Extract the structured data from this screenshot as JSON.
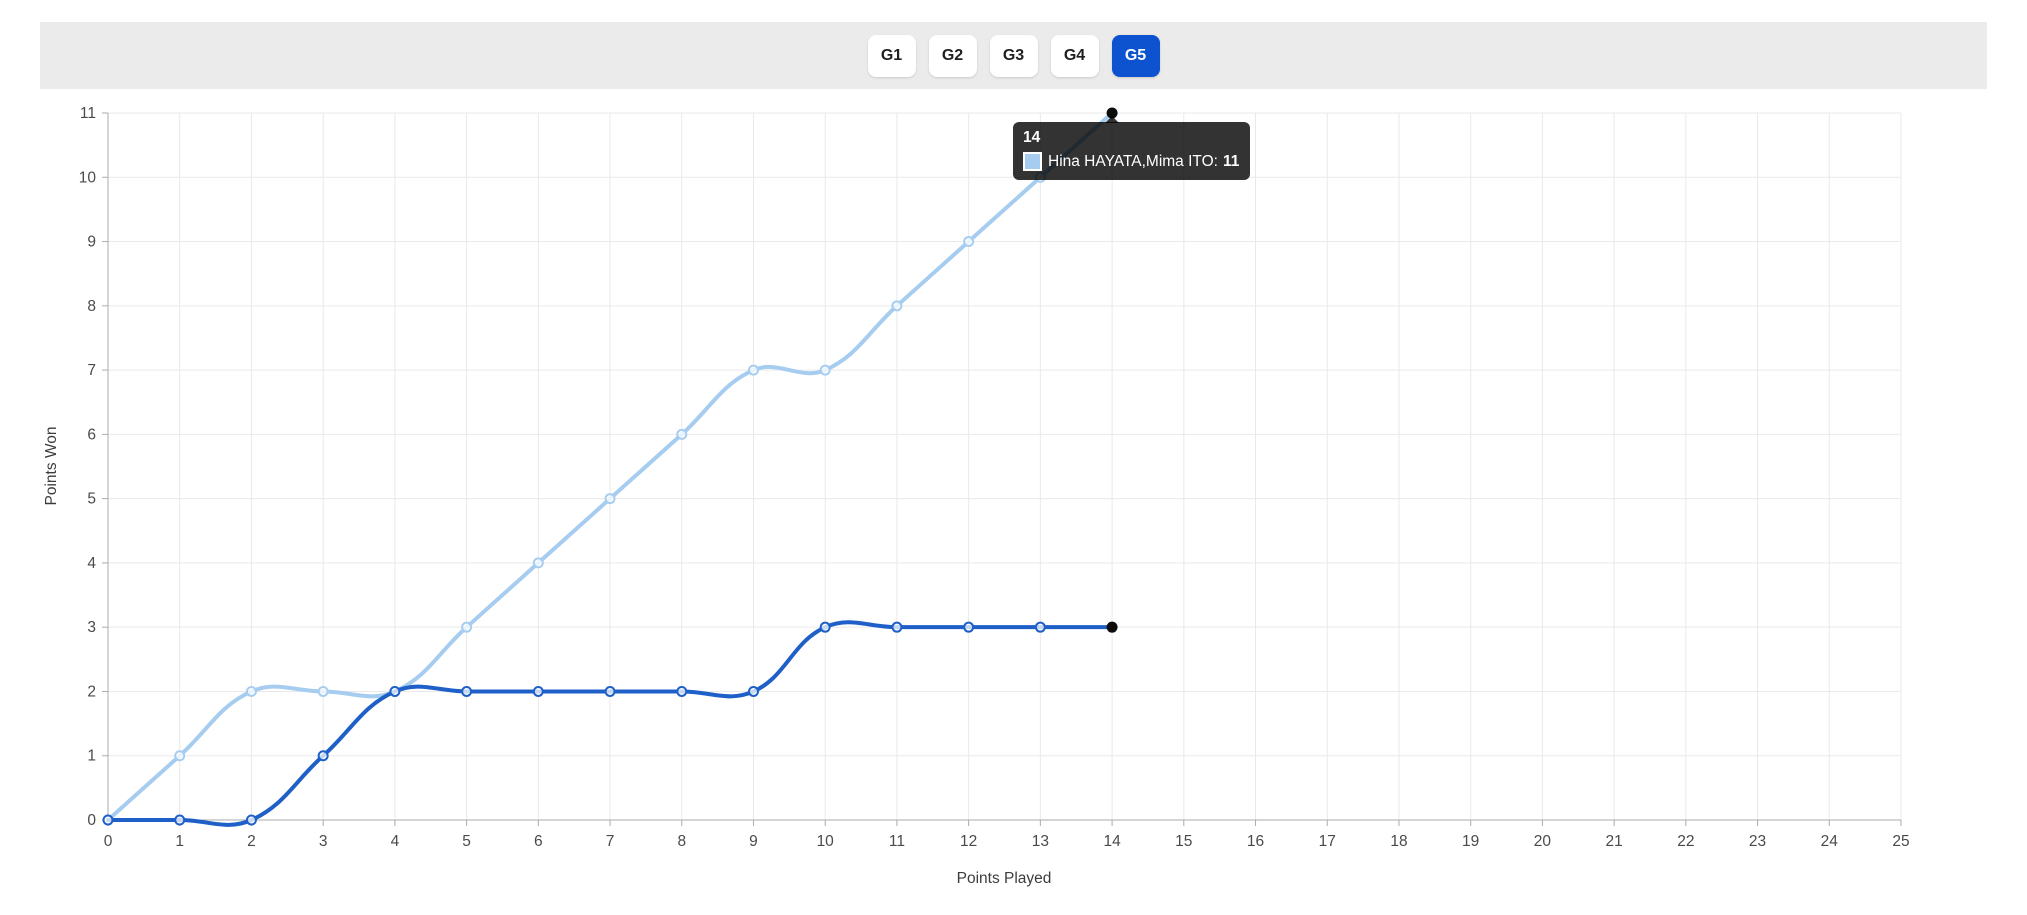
{
  "toolbar": {
    "background": "#ebebeb",
    "active_bg": "#0d53d0",
    "inactive_bg": "#ffffff",
    "tabs": [
      {
        "label": "G1",
        "active": false
      },
      {
        "label": "G2",
        "active": false
      },
      {
        "label": "G3",
        "active": false
      },
      {
        "label": "G4",
        "active": false
      },
      {
        "label": "G5",
        "active": true
      }
    ]
  },
  "chart_data": {
    "type": "line",
    "title": "",
    "xlabel": "Points Played",
    "ylabel": "Points Won",
    "x": [
      0,
      1,
      2,
      3,
      4,
      5,
      6,
      7,
      8,
      9,
      10,
      11,
      12,
      13,
      14
    ],
    "series": [
      {
        "name": "Hina HAYATA,Mima ITO",
        "color": "#a6cdf0",
        "values": [
          0,
          1,
          2,
          2,
          2,
          3,
          4,
          5,
          6,
          7,
          7,
          8,
          9,
          10,
          11
        ],
        "endpoint_color": "#0c0c0c"
      },
      {
        "name": "",
        "color": "#1e5fc8",
        "values": [
          0,
          0,
          0,
          1,
          2,
          2,
          2,
          2,
          2,
          2,
          3,
          3,
          3,
          3,
          3
        ],
        "endpoint_color": "#0c0c0c"
      }
    ],
    "xlim": [
      0,
      25
    ],
    "ylim": [
      0,
      11
    ],
    "x_ticks": [
      0,
      1,
      2,
      3,
      4,
      5,
      6,
      7,
      8,
      9,
      10,
      11,
      12,
      13,
      14,
      15,
      16,
      17,
      18,
      19,
      20,
      21,
      22,
      23,
      24,
      25
    ],
    "y_ticks": [
      0,
      1,
      2,
      3,
      4,
      5,
      6,
      7,
      8,
      9,
      10,
      11
    ],
    "grid": true,
    "grid_color": "#e9e9e9",
    "axis_color": "#ababab",
    "legend": "none",
    "smoothing_tension": 0.4
  },
  "tooltip": {
    "title": "14",
    "entries": [
      {
        "swatch_color": "#a6cdf0",
        "label": "Hina HAYATA,Mima ITO:",
        "value": "11"
      }
    ]
  }
}
